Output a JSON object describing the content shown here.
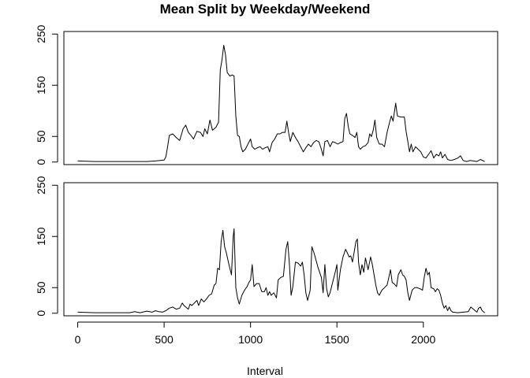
{
  "chart_data": {
    "type": "line",
    "title": "Mean Split by Weekday/Weekend",
    "xlabel": "Interval",
    "ylabel": "",
    "xlim": [
      -80,
      2430
    ],
    "ylim": [
      -5,
      255
    ],
    "x_ticks": [
      0,
      500,
      1000,
      1500,
      2000
    ],
    "y_ticks": [
      0,
      50,
      150,
      250
    ],
    "grid": false,
    "legend": "none",
    "panels": [
      {
        "name": "top panel",
        "points": [
          [
            0,
            2
          ],
          [
            100,
            1
          ],
          [
            200,
            1
          ],
          [
            300,
            1
          ],
          [
            400,
            1
          ],
          [
            450,
            2
          ],
          [
            500,
            4
          ],
          [
            510,
            10
          ],
          [
            520,
            30
          ],
          [
            530,
            52
          ],
          [
            550,
            55
          ],
          [
            570,
            48
          ],
          [
            590,
            42
          ],
          [
            610,
            65
          ],
          [
            625,
            72
          ],
          [
            640,
            58
          ],
          [
            655,
            52
          ],
          [
            670,
            45
          ],
          [
            690,
            60
          ],
          [
            710,
            58
          ],
          [
            725,
            50
          ],
          [
            735,
            65
          ],
          [
            750,
            55
          ],
          [
            765,
            82
          ],
          [
            780,
            62
          ],
          [
            800,
            68
          ],
          [
            815,
            78
          ],
          [
            825,
            180
          ],
          [
            835,
            200
          ],
          [
            845,
            228
          ],
          [
            855,
            210
          ],
          [
            865,
            175
          ],
          [
            880,
            168
          ],
          [
            895,
            170
          ],
          [
            905,
            168
          ],
          [
            915,
            90
          ],
          [
            925,
            52
          ],
          [
            935,
            50
          ],
          [
            945,
            30
          ],
          [
            955,
            20
          ],
          [
            970,
            25
          ],
          [
            985,
            35
          ],
          [
            1000,
            45
          ],
          [
            1010,
            30
          ],
          [
            1025,
            25
          ],
          [
            1040,
            28
          ],
          [
            1055,
            30
          ],
          [
            1070,
            25
          ],
          [
            1085,
            28
          ],
          [
            1100,
            30
          ],
          [
            1110,
            20
          ],
          [
            1125,
            38
          ],
          [
            1140,
            45
          ],
          [
            1155,
            55
          ],
          [
            1170,
            55
          ],
          [
            1185,
            58
          ],
          [
            1200,
            58
          ],
          [
            1210,
            80
          ],
          [
            1220,
            58
          ],
          [
            1230,
            40
          ],
          [
            1245,
            58
          ],
          [
            1260,
            48
          ],
          [
            1275,
            40
          ],
          [
            1290,
            30
          ],
          [
            1305,
            20
          ],
          [
            1320,
            28
          ],
          [
            1335,
            35
          ],
          [
            1350,
            30
          ],
          [
            1365,
            38
          ],
          [
            1380,
            42
          ],
          [
            1395,
            40
          ],
          [
            1410,
            25
          ],
          [
            1420,
            12
          ],
          [
            1430,
            40
          ],
          [
            1445,
            42
          ],
          [
            1460,
            30
          ],
          [
            1475,
            40
          ],
          [
            1490,
            38
          ],
          [
            1505,
            35
          ],
          [
            1520,
            38
          ],
          [
            1535,
            40
          ],
          [
            1545,
            85
          ],
          [
            1555,
            95
          ],
          [
            1565,
            70
          ],
          [
            1575,
            55
          ],
          [
            1590,
            52
          ],
          [
            1605,
            48
          ],
          [
            1615,
            58
          ],
          [
            1625,
            30
          ],
          [
            1635,
            25
          ],
          [
            1650,
            30
          ],
          [
            1665,
            32
          ],
          [
            1680,
            38
          ],
          [
            1690,
            55
          ],
          [
            1700,
            50
          ],
          [
            1710,
            62
          ],
          [
            1720,
            82
          ],
          [
            1730,
            48
          ],
          [
            1745,
            35
          ],
          [
            1760,
            35
          ],
          [
            1775,
            30
          ],
          [
            1790,
            58
          ],
          [
            1805,
            78
          ],
          [
            1815,
            90
          ],
          [
            1825,
            80
          ],
          [
            1840,
            115
          ],
          [
            1850,
            90
          ],
          [
            1870,
            88
          ],
          [
            1890,
            88
          ],
          [
            1900,
            60
          ],
          [
            1910,
            40
          ],
          [
            1920,
            20
          ],
          [
            1930,
            35
          ],
          [
            1940,
            20
          ],
          [
            1955,
            30
          ],
          [
            1970,
            25
          ],
          [
            1985,
            20
          ],
          [
            2000,
            10
          ],
          [
            2015,
            8
          ],
          [
            2030,
            15
          ],
          [
            2045,
            22
          ],
          [
            2060,
            8
          ],
          [
            2075,
            15
          ],
          [
            2090,
            12
          ],
          [
            2100,
            20
          ],
          [
            2110,
            8
          ],
          [
            2125,
            15
          ],
          [
            2140,
            5
          ],
          [
            2160,
            3
          ],
          [
            2180,
            5
          ],
          [
            2200,
            8
          ],
          [
            2215,
            12
          ],
          [
            2230,
            3
          ],
          [
            2250,
            1
          ],
          [
            2270,
            3
          ],
          [
            2290,
            2
          ],
          [
            2310,
            1
          ],
          [
            2330,
            5
          ],
          [
            2355,
            1
          ]
        ]
      },
      {
        "name": "bottom panel",
        "points": [
          [
            0,
            2
          ],
          [
            100,
            1
          ],
          [
            200,
            1
          ],
          [
            300,
            1
          ],
          [
            330,
            3
          ],
          [
            360,
            1
          ],
          [
            400,
            4
          ],
          [
            430,
            2
          ],
          [
            450,
            5
          ],
          [
            470,
            3
          ],
          [
            490,
            2
          ],
          [
            510,
            5
          ],
          [
            530,
            10
          ],
          [
            550,
            12
          ],
          [
            570,
            8
          ],
          [
            590,
            10
          ],
          [
            605,
            20
          ],
          [
            615,
            15
          ],
          [
            625,
            12
          ],
          [
            640,
            8
          ],
          [
            650,
            18
          ],
          [
            660,
            15
          ],
          [
            675,
            20
          ],
          [
            690,
            25
          ],
          [
            700,
            15
          ],
          [
            715,
            28
          ],
          [
            730,
            22
          ],
          [
            745,
            28
          ],
          [
            760,
            35
          ],
          [
            775,
            38
          ],
          [
            790,
            55
          ],
          [
            800,
            58
          ],
          [
            810,
            88
          ],
          [
            820,
            85
          ],
          [
            830,
            140
          ],
          [
            840,
            162
          ],
          [
            850,
            130
          ],
          [
            860,
            118
          ],
          [
            875,
            95
          ],
          [
            890,
            75
          ],
          [
            900,
            150
          ],
          [
            905,
            165
          ],
          [
            915,
            50
          ],
          [
            925,
            30
          ],
          [
            935,
            18
          ],
          [
            950,
            35
          ],
          [
            965,
            45
          ],
          [
            980,
            52
          ],
          [
            990,
            60
          ],
          [
            1000,
            65
          ],
          [
            1005,
            80
          ],
          [
            1010,
            95
          ],
          [
            1020,
            52
          ],
          [
            1035,
            58
          ],
          [
            1050,
            58
          ],
          [
            1065,
            42
          ],
          [
            1080,
            42
          ],
          [
            1090,
            50
          ],
          [
            1100,
            35
          ],
          [
            1110,
            42
          ],
          [
            1120,
            35
          ],
          [
            1135,
            40
          ],
          [
            1150,
            30
          ],
          [
            1160,
            65
          ],
          [
            1175,
            70
          ],
          [
            1190,
            72
          ],
          [
            1205,
            125
          ],
          [
            1215,
            140
          ],
          [
            1225,
            95
          ],
          [
            1235,
            35
          ],
          [
            1245,
            52
          ],
          [
            1260,
            100
          ],
          [
            1275,
            98
          ],
          [
            1290,
            92
          ],
          [
            1300,
            100
          ],
          [
            1310,
            75
          ],
          [
            1320,
            40
          ],
          [
            1330,
            25
          ],
          [
            1345,
            45
          ],
          [
            1355,
            130
          ],
          [
            1370,
            115
          ],
          [
            1390,
            90
          ],
          [
            1410,
            70
          ],
          [
            1420,
            40
          ],
          [
            1430,
            95
          ],
          [
            1440,
            48
          ],
          [
            1450,
            32
          ],
          [
            1460,
            40
          ],
          [
            1475,
            60
          ],
          [
            1490,
            80
          ],
          [
            1500,
            95
          ],
          [
            1505,
            45
          ],
          [
            1520,
            85
          ],
          [
            1535,
            110
          ],
          [
            1550,
            125
          ],
          [
            1560,
            118
          ],
          [
            1570,
            110
          ],
          [
            1580,
            112
          ],
          [
            1590,
            100
          ],
          [
            1600,
            120
          ],
          [
            1610,
            140
          ],
          [
            1618,
            145
          ],
          [
            1625,
            100
          ],
          [
            1635,
            75
          ],
          [
            1645,
            95
          ],
          [
            1655,
            80
          ],
          [
            1665,
            108
          ],
          [
            1680,
            85
          ],
          [
            1695,
            110
          ],
          [
            1705,
            95
          ],
          [
            1715,
            75
          ],
          [
            1725,
            55
          ],
          [
            1735,
            40
          ],
          [
            1745,
            35
          ],
          [
            1760,
            45
          ],
          [
            1775,
            50
          ],
          [
            1790,
            55
          ],
          [
            1800,
            70
          ],
          [
            1810,
            85
          ],
          [
            1820,
            60
          ],
          [
            1830,
            58
          ],
          [
            1845,
            52
          ],
          [
            1855,
            75
          ],
          [
            1870,
            85
          ],
          [
            1880,
            75
          ],
          [
            1890,
            72
          ],
          [
            1900,
            65
          ],
          [
            1910,
            40
          ],
          [
            1920,
            25
          ],
          [
            1935,
            45
          ],
          [
            1950,
            50
          ],
          [
            1965,
            50
          ],
          [
            1980,
            48
          ],
          [
            1995,
            45
          ],
          [
            2005,
            70
          ],
          [
            2015,
            88
          ],
          [
            2025,
            75
          ],
          [
            2035,
            80
          ],
          [
            2045,
            50
          ],
          [
            2060,
            48
          ],
          [
            2070,
            42
          ],
          [
            2080,
            48
          ],
          [
            2090,
            45
          ],
          [
            2100,
            35
          ],
          [
            2110,
            20
          ],
          [
            2120,
            10
          ],
          [
            2130,
            15
          ],
          [
            2140,
            5
          ],
          [
            2150,
            12
          ],
          [
            2160,
            5
          ],
          [
            2170,
            2
          ],
          [
            2200,
            1
          ],
          [
            2230,
            2
          ],
          [
            2260,
            3
          ],
          [
            2275,
            12
          ],
          [
            2290,
            8
          ],
          [
            2310,
            2
          ],
          [
            2320,
            10
          ],
          [
            2330,
            12
          ],
          [
            2340,
            5
          ],
          [
            2355,
            1
          ]
        ]
      }
    ]
  }
}
